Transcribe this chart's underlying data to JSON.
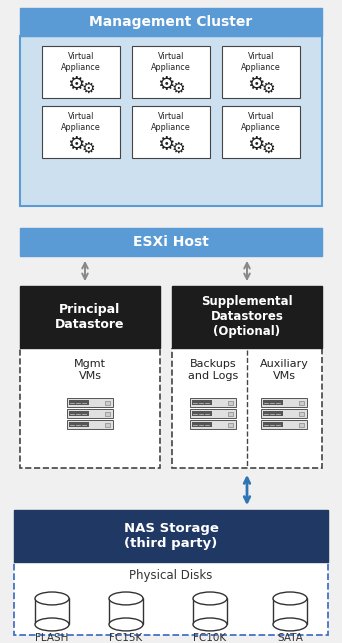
{
  "bg_color": "#f0f0f0",
  "title": "Management Cluster",
  "esxi_label": "ESXi Host",
  "principal_label": "Principal\nDatastore",
  "supplemental_label": "Supplemental\nDatastores\n(Optional)",
  "mgmt_label": "Mgmt\nVMs",
  "backups_label": "Backups\nand Logs",
  "auxiliary_label": "Auxiliary\nVMs",
  "nas_label": "NAS Storage\n(third party)",
  "physical_label": "Physical Disks",
  "disk_labels": [
    "FLASH",
    "FC15K",
    "FC10K",
    "SATA"
  ],
  "va_label": "Virtual\nAppliance",
  "mgmt_cluster_header_color": "#5b9bd5",
  "mgmt_cluster_body_color": "#cde0f0",
  "esxi_color": "#5b9bd5",
  "datastore_color": "#1c1c1c",
  "datastore_text_color": "#ffffff",
  "nas_color": "#1f3864",
  "nas_text_color": "#ffffff",
  "arrow_color": "#888888",
  "blue_arrow_color": "#2e75b6",
  "dashed_border_color": "#444444",
  "phys_border_color": "#4472c4",
  "va_box_color": "#ffffff"
}
